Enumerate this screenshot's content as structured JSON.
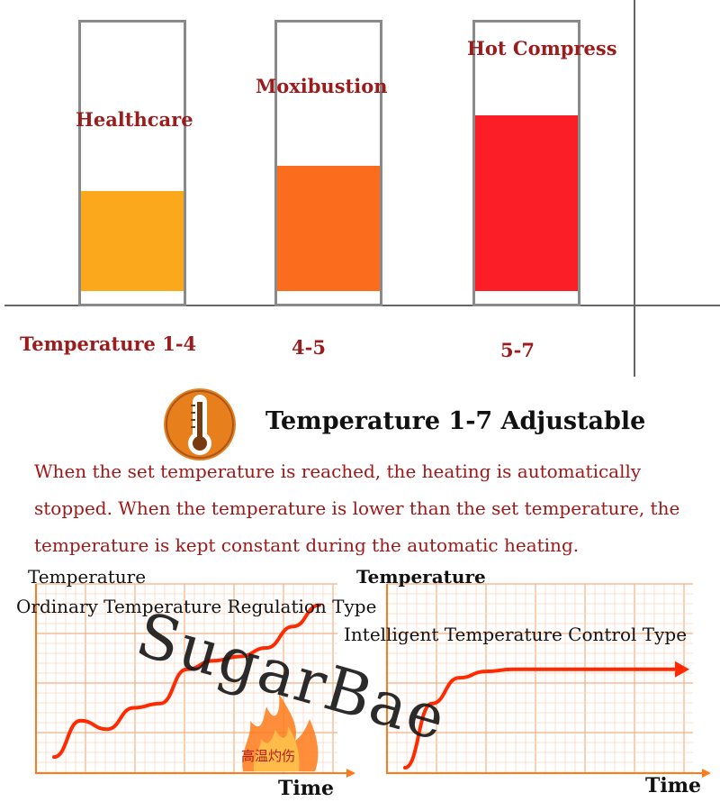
{
  "chart_data": [
    {
      "type": "bar",
      "categories": [
        "Healthcare",
        "Moxibustion",
        "Hot Compress"
      ],
      "range_labels": [
        "Temperature 1-4",
        "4-5",
        "5-7"
      ],
      "values": [
        4,
        5,
        7
      ],
      "ylim": [
        0,
        10
      ],
      "colors": [
        "#fba81d",
        "#fb6d1c",
        "#fb1e26"
      ]
    },
    {
      "type": "line",
      "title": "Ordinary Temperature Regulation Type",
      "ylabel": "Temperature",
      "xlabel": "Time",
      "line_color": "#ff2a00",
      "grid": true,
      "annotation": "高温灼伤",
      "x": [
        0,
        1,
        2,
        3,
        4,
        5,
        6,
        7,
        8,
        9,
        10
      ],
      "y": [
        0.5,
        2.2,
        1.8,
        2.8,
        3.0,
        4.6,
        5.0,
        5.2,
        5.6,
        6.6,
        7.6
      ]
    },
    {
      "type": "line",
      "title": "Intelligent Temperature  Control Type",
      "ylabel": "Temperature",
      "xlabel": "Time",
      "line_color": "#ff2a00",
      "grid": true,
      "x": [
        0,
        1,
        2,
        3,
        4,
        5,
        6,
        7,
        8,
        9,
        10
      ],
      "y": [
        0,
        3.0,
        4.2,
        4.5,
        4.6,
        4.6,
        4.6,
        4.6,
        4.6,
        4.6,
        4.6
      ]
    }
  ],
  "heading": "Temperature 1-7 Adjustable",
  "description": "When the set temperature is reached, the heating is automatically stopped. When the temperature is lower than the set temperature, the temperature is kept constant during the automatic heating.",
  "watermark": "SugarBae",
  "icons": {
    "thermometer": "thermometer-icon",
    "flame": "flame-icon"
  },
  "accent_color": "#a01818"
}
